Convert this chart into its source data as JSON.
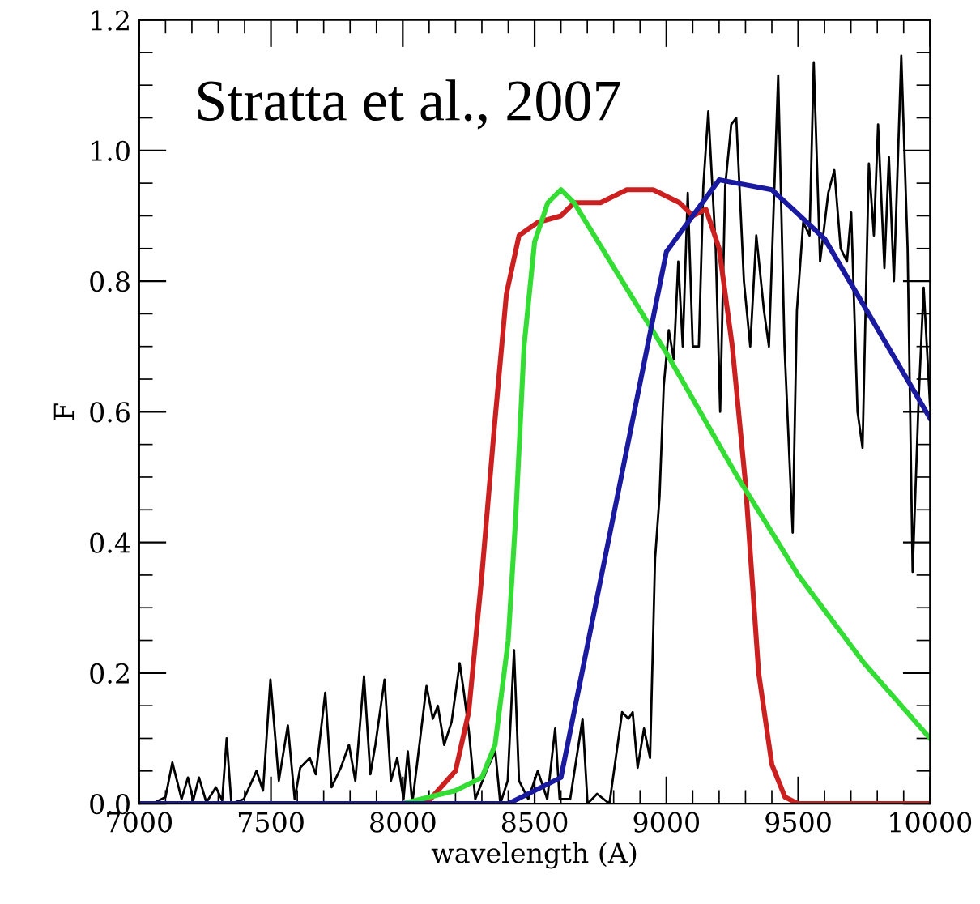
{
  "chart_data": {
    "type": "line",
    "xlabel": "wavelength (A)",
    "ylabel": "F",
    "annotations": [
      "Stratta et al., 2007"
    ],
    "xlim": [
      7000,
      10000
    ],
    "xticks": [
      7000,
      7500,
      8000,
      8500,
      9000,
      9500,
      10000
    ],
    "ylim": [
      0,
      1.2
    ],
    "yticks": [
      {
        "value": 0,
        "label": "0.0"
      },
      {
        "value": 0.2,
        "label": "0.2"
      },
      {
        "value": 0.4,
        "label": "0.4"
      },
      {
        "value": 0.6,
        "label": "0.6"
      },
      {
        "value": 0.8,
        "label": "0.8"
      },
      {
        "value": 1.0,
        "label": "1.0"
      },
      {
        "value": 1.2,
        "label": "1.2"
      }
    ],
    "grid": false,
    "legend": false,
    "marker": "none",
    "line_style": "solid",
    "series": [
      {
        "color": "#000000",
        "x": [
          7000,
          7050,
          7100,
          7126,
          7161,
          7185,
          7205,
          7227,
          7255,
          7291,
          7315,
          7332,
          7350,
          7397,
          7445,
          7470,
          7498,
          7530,
          7564,
          7590,
          7611,
          7647,
          7670,
          7706,
          7730,
          7765,
          7796,
          7820,
          7853,
          7877,
          7896,
          7931,
          7955,
          7979,
          8003,
          8019,
          8036,
          8090,
          8114,
          8133,
          8157,
          8185,
          8216,
          8232,
          8251,
          8275,
          8322,
          8351,
          8370,
          8398,
          8422,
          8441,
          8476,
          8512,
          8548,
          8578,
          8595,
          8635,
          8682,
          8701,
          8737,
          8784,
          8832,
          8856,
          8872,
          8891,
          8915,
          8938,
          8957,
          8974,
          8990,
          9009,
          9028,
          9045,
          9062,
          9081,
          9100,
          9123,
          9140,
          9159,
          9187,
          9204,
          9223,
          9246,
          9265,
          9294,
          9318,
          9341,
          9370,
          9389,
          9424,
          9448,
          9479,
          9495,
          9519,
          9543,
          9559,
          9583,
          9614,
          9637,
          9661,
          9685,
          9701,
          9725,
          9744,
          9768,
          9787,
          9803,
          9827,
          9844,
          9863,
          9891,
          9915,
          9934,
          9957,
          9976,
          10000
        ],
        "values": [
          0,
          0,
          0.01,
          0.063,
          0.007,
          0.04,
          0.005,
          0.04,
          0.002,
          0.025,
          0.005,
          0.1,
          0,
          0.007,
          0.05,
          0.02,
          0.19,
          0.035,
          0.12,
          0.007,
          0.055,
          0.07,
          0.045,
          0.17,
          0.025,
          0.055,
          0.09,
          0.035,
          0.195,
          0.045,
          0.09,
          0.19,
          0.035,
          0.07,
          0.007,
          0.08,
          0,
          0.18,
          0.13,
          0.15,
          0.09,
          0.125,
          0.215,
          0.17,
          0.11,
          0.007,
          0.055,
          0.08,
          0,
          0.035,
          0.235,
          0.035,
          0.007,
          0.05,
          0.007,
          0.115,
          0.007,
          0.007,
          0.13,
          0,
          0.015,
          0,
          0.14,
          0.13,
          0.14,
          0.055,
          0.115,
          0.07,
          0.375,
          0.47,
          0.64,
          0.725,
          0.68,
          0.83,
          0.7,
          0.935,
          0.7,
          0.7,
          0.945,
          1.06,
          0.85,
          0.6,
          0.945,
          1.04,
          1.05,
          0.8,
          0.7,
          0.87,
          0.755,
          0.7,
          1.115,
          0.7,
          0.415,
          0.755,
          0.89,
          0.87,
          1.135,
          0.83,
          0.935,
          0.97,
          0.85,
          0.83,
          0.905,
          0.6,
          0.545,
          0.98,
          0.87,
          1.04,
          0.82,
          0.99,
          0.8,
          1.145,
          0.85,
          0.355,
          0.62,
          0.79,
          0.61
        ]
      },
      {
        "color": "#cc2020",
        "x": [
          7000,
          8000,
          8100,
          8200,
          8250,
          8300,
          8346,
          8393,
          8441,
          8512,
          8600,
          8650,
          8750,
          8850,
          8950,
          9050,
          9100,
          9150,
          9200,
          9250,
          9300,
          9350,
          9400,
          9450,
          9500,
          10000
        ],
        "values": [
          0,
          0,
          0.005,
          0.05,
          0.14,
          0.35,
          0.57,
          0.78,
          0.87,
          0.89,
          0.9,
          0.92,
          0.92,
          0.94,
          0.94,
          0.92,
          0.9,
          0.91,
          0.85,
          0.7,
          0.49,
          0.2,
          0.06,
          0.01,
          0,
          0
        ]
      },
      {
        "color": "#33dd33",
        "x": [
          8000,
          8200,
          8300,
          8350,
          8400,
          8430,
          8460,
          8500,
          8550,
          8600,
          8650,
          9000,
          9270,
          9500,
          9750,
          10000
        ],
        "values": [
          0,
          0.02,
          0.04,
          0.09,
          0.25,
          0.45,
          0.7,
          0.86,
          0.92,
          0.94,
          0.92,
          0.69,
          0.5,
          0.35,
          0.215,
          0.1
        ]
      },
      {
        "color": "#1a1aa0",
        "x": [
          7000,
          8400,
          8600,
          9000,
          9200,
          9400,
          9600,
          10000
        ],
        "values": [
          0,
          0,
          0.04,
          0.845,
          0.955,
          0.94,
          0.865,
          0.59
        ]
      }
    ]
  }
}
